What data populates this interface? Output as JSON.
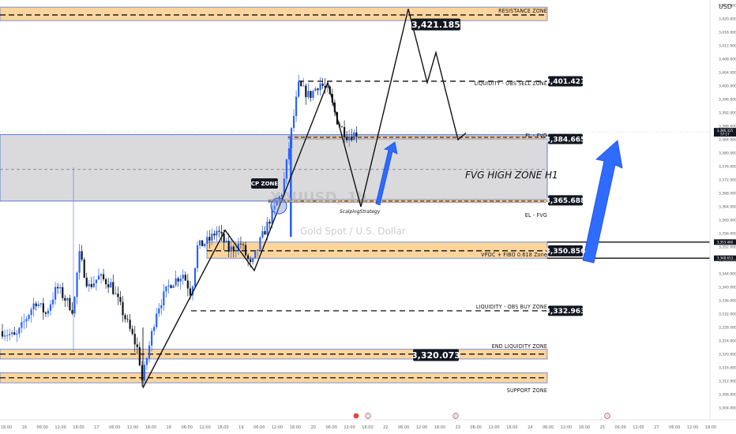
{
  "chart_data": {
    "type": "candlestick",
    "currency": "USD",
    "watermark": {
      "symbol": "XAUUSD, 1h",
      "name": "Gold Spot / U.S. Dollar"
    },
    "y_axis": {
      "min": 3304,
      "max": 3424,
      "ticks": [
        "3,424.000",
        "3,420.000",
        "3,416.000",
        "3,412.000",
        "3,408.000",
        "3,404.000",
        "3,400.000",
        "3,396.000",
        "3,392.000",
        "3,388.000",
        "3,384.000",
        "3,380.000",
        "3,376.000",
        "3,372.000",
        "3,368.000",
        "3,364.000",
        "3,360.000",
        "3,356.000",
        "3,352.000",
        "3,348.000",
        "3,344.000",
        "3,340.000",
        "3,336.000",
        "3,332.000",
        "3,328.000",
        "3,324.000",
        "3,320.000",
        "3,316.000",
        "3,312.000",
        "3,308.000",
        "3,304.000"
      ]
    },
    "x_axis": {
      "ticks": [
        "18:00",
        "16",
        "06:00",
        "12:00",
        "18:00",
        "17",
        "06:00",
        "12:00",
        "18:00",
        "18",
        "06:00",
        "12:00",
        "18:00",
        "19",
        "06:00",
        "12:00",
        "18:00",
        "20",
        "06:00",
        "12:00",
        "18:00",
        "22",
        "06:00",
        "12:00",
        "18:00",
        "23",
        "06:00",
        "12:00",
        "18:00",
        "24",
        "06:00",
        "12:00",
        "18:00",
        "25",
        "06:00",
        "12:00",
        "27",
        "06:00",
        "12:00",
        "18:00"
      ]
    },
    "current_price": {
      "value": "3,386.325",
      "countdown": "57:17",
      "value_num": 3386.325
    },
    "right_scale_labels": [
      {
        "text": "3,353.460",
        "value": 3353.46
      },
      {
        "text": "3,348.653",
        "value": 3348.653
      }
    ],
    "zones": [
      {
        "label": "RESISTANCE  ZONE",
        "price": "3,421.185",
        "low": 3419.5,
        "high": 3423.5,
        "value": 3421.185,
        "style": "band"
      },
      {
        "label": "LIQUIDITY - OBS SELL ZONE",
        "price": "3,401.421",
        "value": 3401.421,
        "style": "dashed"
      },
      {
        "label": "FL - FVG",
        "price": "3,384.665",
        "value": 3384.665,
        "style": "thin-band"
      },
      {
        "label": "FVG HIGH ZONE H1",
        "low": 3365.688,
        "high": 3385.5,
        "style": "grey-box"
      },
      {
        "label": "EL - FVG",
        "price": "3,365.688",
        "value": 3365.688,
        "style": "thin-band"
      },
      {
        "label": "VPOC + FIBO 0.618 Zone",
        "price": "3,350.856",
        "low": 3348.653,
        "high": 3353.46,
        "value": 3350.856,
        "style": "band"
      },
      {
        "label": "LIQUIDITY - OBS BUY ZONE",
        "price": "3,332.963",
        "value": 3332.963,
        "style": "dashed"
      },
      {
        "label": "END LIQUIDITY ZONE",
        "price": "3,320.073",
        "low": 3318.6,
        "high": 3321.5,
        "value": 3320.073,
        "style": "band"
      },
      {
        "label": "SUPPORT  ZONE",
        "low": 3311.5,
        "high": 3314.5,
        "style": "band"
      }
    ],
    "annotations": {
      "cp_zone": "CP ZONE",
      "strategy": "ScalpingStrategy"
    }
  }
}
